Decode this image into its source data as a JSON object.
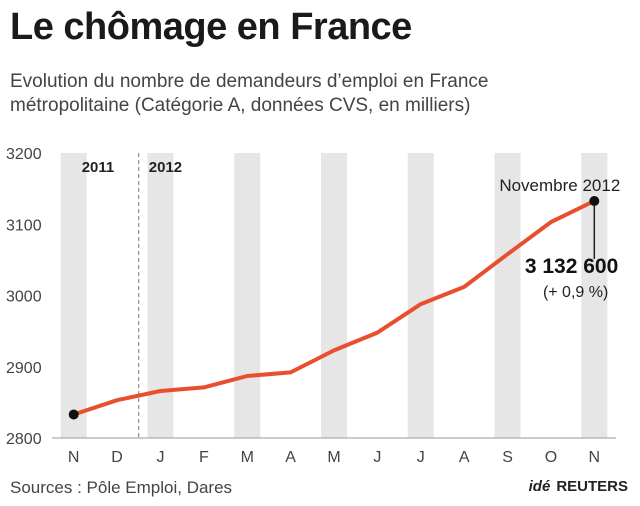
{
  "header": {
    "title": "Le chômage en France",
    "subtitle": "Evolution du nombre de demandeurs d’emploi en France métropolitaine (Catégorie A, données CVS, en milliers)"
  },
  "chart_data": {
    "type": "line",
    "categories": [
      "N",
      "D",
      "J",
      "F",
      "M",
      "A",
      "M",
      "J",
      "J",
      "A",
      "S",
      "O",
      "N"
    ],
    "year_labels": [
      "2011",
      "2012"
    ],
    "ylim": [
      2800,
      3200
    ],
    "yticks": [
      2800,
      2900,
      3000,
      3100,
      3200
    ],
    "series": [
      {
        "values": [
          2833,
          2853,
          2866,
          2871,
          2887,
          2892,
          2923,
          2948,
          2988,
          3012,
          3058,
          3103,
          3132.6
        ]
      }
    ],
    "annotation": {
      "label": "Novembre 2012",
      "value_text": "3 132 600",
      "change_text": "(+ 0,9 %)"
    },
    "colors": {
      "line": "#e94e2f",
      "band": "#e6e6e6",
      "marker": "#111111"
    }
  },
  "footer": {
    "sources": "Sources : Pôle Emploi, Dares",
    "credit_ide": "idé",
    "credit_reuters": "REUTERS"
  }
}
